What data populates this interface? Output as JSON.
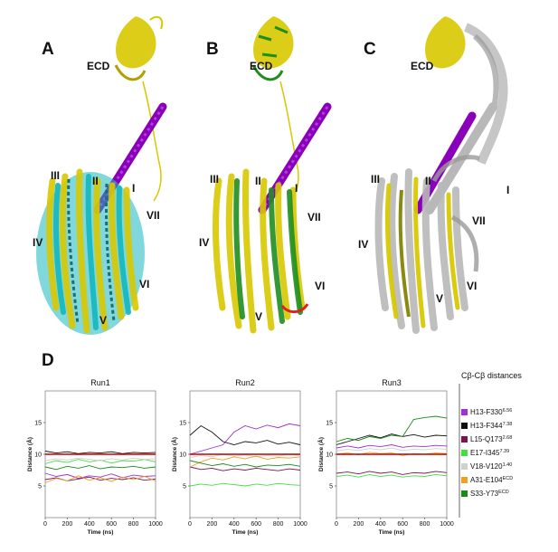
{
  "panels": {
    "A": {
      "label": "A",
      "helices": [
        "ECD",
        "I",
        "II",
        "III",
        "IV",
        "V",
        "VI",
        "VII"
      ]
    },
    "B": {
      "label": "B",
      "helices": [
        "ECD",
        "I",
        "II",
        "III",
        "IV",
        "V",
        "VI",
        "VII"
      ]
    },
    "C": {
      "label": "C",
      "helices": [
        "ECD",
        "I",
        "II",
        "III",
        "IV",
        "V",
        "VI",
        "VII"
      ]
    },
    "D": {
      "label": "D"
    }
  },
  "colors": {
    "yellow": "#d8c800",
    "cyan": "#18b8c0",
    "green": "#1e8e1e",
    "purple": "#8a00b8",
    "grey": "#b8b8b8",
    "olive": "#8a8a10",
    "red": "#e02020"
  },
  "legend": {
    "title": "Cβ-Cβ distances",
    "items": [
      {
        "label": "H13-F330",
        "sup": "6.56",
        "color": "#a030d0"
      },
      {
        "label": "H13-F344",
        "sup": "7.38",
        "color": "#111111"
      },
      {
        "label": "L15-Q173",
        "sup": "2.68",
        "color": "#7a1450"
      },
      {
        "label": "E17-I345",
        "sup": "7.39",
        "color": "#40e040"
      },
      {
        "label": "V18-V120",
        "sup": "1.40",
        "color": "#d0d0d0"
      },
      {
        "label": "A31-E104",
        "sup": "ECD",
        "color": "#f0a020"
      },
      {
        "label": "S33-Y73",
        "sup": "ECD",
        "color": "#1a8a1a"
      }
    ]
  },
  "chart_data": [
    {
      "type": "line",
      "title": "Run1",
      "xlabel": "Time (ns)",
      "ylabel": "Distance (Å)",
      "xlim": [
        0,
        1000
      ],
      "ylim": [
        0,
        20
      ],
      "xticks": [
        0,
        200,
        400,
        600,
        800,
        1000
      ],
      "yticks": [
        5,
        10,
        15
      ],
      "reference_line": 10,
      "series": [
        {
          "color": "#a030d0",
          "x": [
            0,
            100,
            200,
            300,
            400,
            500,
            600,
            700,
            800,
            900,
            1000
          ],
          "y": [
            7,
            6.5,
            6.8,
            6.2,
            6.6,
            6.4,
            6.9,
            6.3,
            6.7,
            6.5,
            6.6
          ]
        },
        {
          "color": "#111111",
          "x": [
            0,
            100,
            200,
            300,
            400,
            500,
            600,
            700,
            800,
            900,
            1000
          ],
          "y": [
            10.5,
            10.2,
            10.4,
            10.1,
            10.3,
            10.2,
            10.4,
            10.1,
            10.3,
            10.2,
            10.3
          ]
        },
        {
          "color": "#7a1450",
          "x": [
            0,
            100,
            200,
            300,
            400,
            500,
            600,
            700,
            800,
            900,
            1000
          ],
          "y": [
            6,
            6.3,
            5.8,
            6.1,
            6.4,
            5.9,
            6.2,
            6,
            6.3,
            5.9,
            6.1
          ]
        },
        {
          "color": "#40e040",
          "x": [
            0,
            100,
            200,
            300,
            400,
            500,
            600,
            700,
            800,
            900,
            1000
          ],
          "y": [
            8.5,
            9,
            8.7,
            9.2,
            8.8,
            9.1,
            8.6,
            9,
            8.9,
            9.2,
            8.8
          ]
        },
        {
          "color": "#d0d0d0",
          "x": [
            0,
            100,
            200,
            300,
            400,
            500,
            600,
            700,
            800,
            900,
            1000
          ],
          "y": [
            9,
            9.3,
            9.1,
            9.4,
            9.2,
            9,
            9.3,
            9.1,
            9.4,
            9.2,
            9.3
          ]
        },
        {
          "color": "#f0a020",
          "x": [
            0,
            100,
            200,
            300,
            400,
            500,
            600,
            700,
            800,
            900,
            1000
          ],
          "y": [
            5.5,
            6.2,
            5.8,
            6.6,
            5.9,
            6.3,
            5.7,
            6.4,
            6,
            6.5,
            5.8
          ]
        },
        {
          "color": "#1a8a1a",
          "x": [
            0,
            100,
            200,
            300,
            400,
            500,
            600,
            700,
            800,
            900,
            1000
          ],
          "y": [
            8,
            7.6,
            8.1,
            7.8,
            8.2,
            7.7,
            8,
            7.9,
            8.1,
            7.8,
            8
          ]
        }
      ]
    },
    {
      "type": "line",
      "title": "Run2",
      "xlabel": "Time (ns)",
      "ylabel": "Distance (Å)",
      "xlim": [
        0,
        1000
      ],
      "ylim": [
        0,
        20
      ],
      "xticks": [
        0,
        200,
        400,
        600,
        800,
        1000
      ],
      "yticks": [
        5,
        10,
        15
      ],
      "reference_line": 10,
      "series": [
        {
          "color": "#a030d0",
          "x": [
            0,
            100,
            200,
            300,
            400,
            500,
            600,
            700,
            800,
            900,
            1000
          ],
          "y": [
            10,
            10.5,
            11,
            11.5,
            13.5,
            14.5,
            14,
            14.6,
            14.2,
            14.8,
            14.5
          ]
        },
        {
          "color": "#111111",
          "x": [
            0,
            100,
            200,
            300,
            400,
            500,
            600,
            700,
            800,
            900,
            1000
          ],
          "y": [
            13,
            14.5,
            13.5,
            12,
            11.5,
            12,
            11.8,
            12.2,
            11.6,
            11.9,
            11.5
          ]
        },
        {
          "color": "#7a1450",
          "x": [
            0,
            100,
            200,
            300,
            400,
            500,
            600,
            700,
            800,
            900,
            1000
          ],
          "y": [
            8,
            7.6,
            7.8,
            7.4,
            7.7,
            7.5,
            7.8,
            7.6,
            7.4,
            7.7,
            7.5
          ]
        },
        {
          "color": "#40e040",
          "x": [
            0,
            100,
            200,
            300,
            400,
            500,
            600,
            700,
            800,
            900,
            1000
          ],
          "y": [
            5,
            5.3,
            5.1,
            5.4,
            5.2,
            5,
            5.3,
            5.1,
            5.4,
            5.2,
            5.1
          ]
        },
        {
          "color": "#d0d0d0",
          "x": [
            0,
            100,
            200,
            300,
            400,
            500,
            600,
            700,
            800,
            900,
            1000
          ],
          "y": [
            9.5,
            9.8,
            9.6,
            10,
            9.7,
            9.9,
            9.6,
            9.8,
            9.7,
            10,
            9.8
          ]
        },
        {
          "color": "#f0a020",
          "x": [
            0,
            100,
            200,
            300,
            400,
            500,
            600,
            700,
            800,
            900,
            1000
          ],
          "y": [
            8,
            8.8,
            9.4,
            9.1,
            9.6,
            9.3,
            9.7,
            9.2,
            9.5,
            9.4,
            9.6
          ]
        },
        {
          "color": "#1a8a1a",
          "x": [
            0,
            100,
            200,
            300,
            400,
            500,
            600,
            700,
            800,
            900,
            1000
          ],
          "y": [
            9,
            8.6,
            8.2,
            8.5,
            8.1,
            8.4,
            8,
            8.3,
            8.2,
            8.4,
            8.1
          ]
        }
      ]
    },
    {
      "type": "line",
      "title": "Run3",
      "xlabel": "Time (ns)",
      "ylabel": "Distance (Å)",
      "xlim": [
        0,
        1000
      ],
      "ylim": [
        0,
        20
      ],
      "xticks": [
        0,
        200,
        400,
        600,
        800,
        1000
      ],
      "yticks": [
        5,
        10,
        15
      ],
      "reference_line": 10,
      "series": [
        {
          "color": "#a030d0",
          "x": [
            0,
            100,
            200,
            300,
            400,
            500,
            600,
            700,
            800,
            900,
            1000
          ],
          "y": [
            11,
            11.3,
            11,
            11.4,
            11.2,
            11.5,
            11.1,
            11.3,
            11.2,
            11.4,
            11.3
          ]
        },
        {
          "color": "#111111",
          "x": [
            0,
            100,
            200,
            300,
            400,
            500,
            600,
            700,
            800,
            900,
            1000
          ],
          "y": [
            11.5,
            12,
            12.5,
            13,
            12.6,
            13.2,
            12.8,
            13.1,
            12.7,
            13,
            12.9
          ]
        },
        {
          "color": "#7a1450",
          "x": [
            0,
            100,
            200,
            300,
            400,
            500,
            600,
            700,
            800,
            900,
            1000
          ],
          "y": [
            7,
            7.2,
            6.9,
            7.3,
            7,
            7.2,
            6.8,
            7.1,
            7,
            7.3,
            7.1
          ]
        },
        {
          "color": "#40e040",
          "x": [
            0,
            100,
            200,
            300,
            400,
            500,
            600,
            700,
            800,
            900,
            1000
          ],
          "y": [
            6.5,
            6.7,
            6.4,
            6.8,
            6.5,
            6.7,
            6.4,
            6.6,
            6.5,
            6.8,
            6.6
          ]
        },
        {
          "color": "#d0d0d0",
          "x": [
            0,
            100,
            200,
            300,
            400,
            500,
            600,
            700,
            800,
            900,
            1000
          ],
          "y": [
            10.5,
            10.8,
            10.6,
            10.9,
            10.7,
            11,
            10.6,
            10.8,
            10.7,
            10.9,
            10.8
          ]
        },
        {
          "color": "#f0a020",
          "x": [
            0,
            100,
            200,
            300,
            400,
            500,
            600,
            700,
            800,
            900,
            1000
          ],
          "y": [
            10,
            10.2,
            9.9,
            10.3,
            10.1,
            10.2,
            9.8,
            10.1,
            10,
            10.2,
            10.1
          ]
        },
        {
          "color": "#1a8a1a",
          "x": [
            0,
            100,
            200,
            300,
            400,
            500,
            600,
            700,
            800,
            900,
            1000
          ],
          "y": [
            12,
            12.5,
            12.2,
            12.8,
            12.5,
            13,
            12.8,
            15.5,
            15.8,
            16,
            15.7
          ]
        }
      ]
    }
  ]
}
